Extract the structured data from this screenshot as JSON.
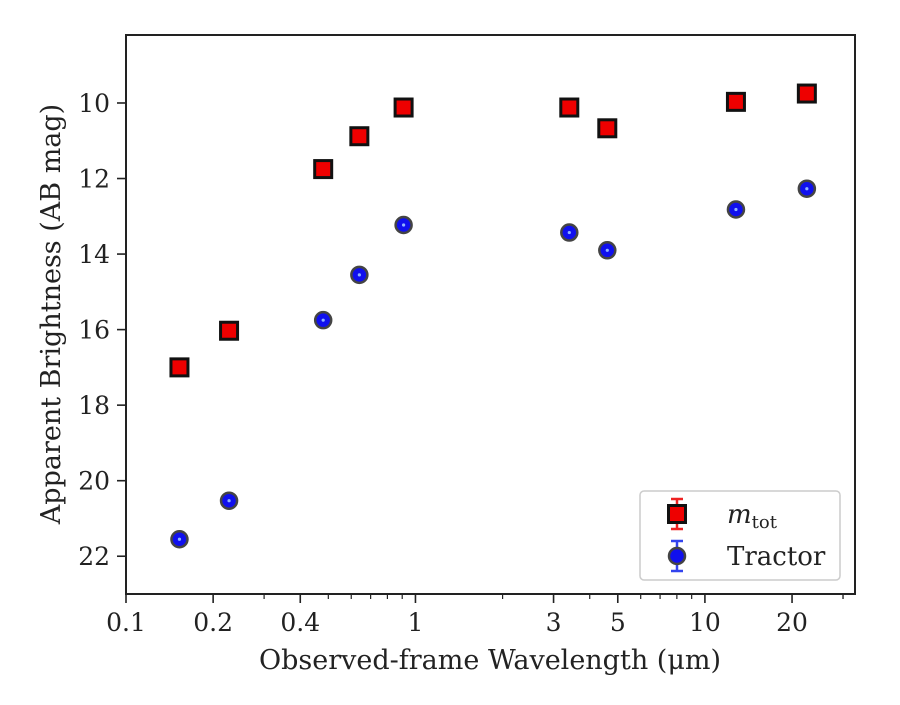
{
  "chart_data": {
    "type": "scatter",
    "title": "",
    "xlabel": "Observed-frame Wavelength (μm)",
    "ylabel": "Apparent Brightness (AB mag)",
    "x_scale": "log",
    "xlim": [
      0.1,
      33
    ],
    "ylim": [
      23,
      8.2
    ],
    "y_inverted": true,
    "grid": false,
    "legend_position": "lower right",
    "x_ticks": [
      {
        "value": 0.1,
        "label": "0.1"
      },
      {
        "value": 0.2,
        "label": "0.2"
      },
      {
        "value": 0.4,
        "label": "0.4"
      },
      {
        "value": 1,
        "label": "1"
      },
      {
        "value": 3,
        "label": "3"
      },
      {
        "value": 5,
        "label": "5"
      },
      {
        "value": 10,
        "label": "10"
      },
      {
        "value": 20,
        "label": "20"
      }
    ],
    "y_ticks": [
      {
        "value": 10,
        "label": "10"
      },
      {
        "value": 12,
        "label": "12"
      },
      {
        "value": 14,
        "label": "14"
      },
      {
        "value": 16,
        "label": "16"
      },
      {
        "value": 18,
        "label": "18"
      },
      {
        "value": 20,
        "label": "20"
      },
      {
        "value": 22,
        "label": "22"
      }
    ],
    "series": [
      {
        "name": "m",
        "name_subscript": "tot",
        "marker": "square",
        "color": "#ee0000",
        "edge_color": "#111111",
        "points": [
          {
            "x": 0.153,
            "y": 17.0
          },
          {
            "x": 0.227,
            "y": 16.03
          },
          {
            "x": 0.48,
            "y": 11.75
          },
          {
            "x": 0.64,
            "y": 10.88
          },
          {
            "x": 0.91,
            "y": 10.12
          },
          {
            "x": 3.4,
            "y": 10.12
          },
          {
            "x": 4.6,
            "y": 10.67
          },
          {
            "x": 12.8,
            "y": 9.97
          },
          {
            "x": 22.5,
            "y": 9.75
          }
        ]
      },
      {
        "name": "Tractor",
        "marker": "circle",
        "color": "#1010ee",
        "edge_color": "#444444",
        "points": [
          {
            "x": 0.153,
            "y": 21.55
          },
          {
            "x": 0.227,
            "y": 20.53
          },
          {
            "x": 0.48,
            "y": 15.75
          },
          {
            "x": 0.64,
            "y": 14.55
          },
          {
            "x": 0.91,
            "y": 13.23
          },
          {
            "x": 3.4,
            "y": 13.43
          },
          {
            "x": 4.6,
            "y": 13.9
          },
          {
            "x": 12.8,
            "y": 12.82
          },
          {
            "x": 22.5,
            "y": 12.27
          }
        ]
      }
    ]
  }
}
